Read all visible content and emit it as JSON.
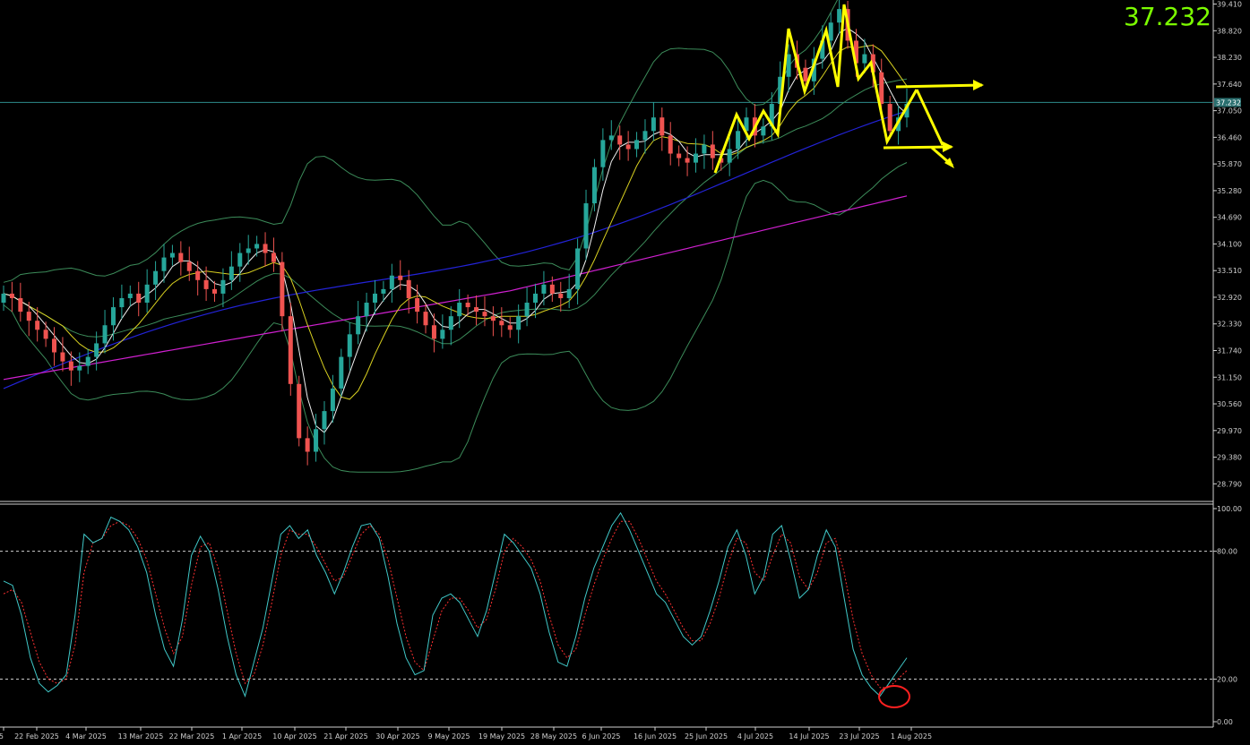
{
  "current_price": "37.232",
  "chart_data": [
    {
      "type": "candlestick",
      "title": "",
      "xlabel": "",
      "ylabel": "",
      "ylim": [
        28.4,
        39.5
      ],
      "yticks": [
        "39.410",
        "38.820",
        "38.230",
        "37.640",
        "37.050",
        "36.460",
        "35.870",
        "35.280",
        "34.690",
        "34.100",
        "33.510",
        "32.920",
        "32.330",
        "31.740",
        "31.150",
        "30.560",
        "29.970",
        "29.380",
        "28.790"
      ],
      "xticks": [
        "25",
        "22 Feb 2025",
        "4 Mar 2025",
        "13 Mar 2025",
        "22 Mar 2025",
        "1 Apr 2025",
        "10 Apr 2025",
        "21 Apr 2025",
        "30 Apr 2025",
        "9 May 2025",
        "19 May 2025",
        "28 May 2025",
        "6 Jun 2025",
        "16 Jun 2025",
        "25 Jun 2025",
        "4 Jul 2025",
        "14 Jul 2025",
        "23 Jul 2025",
        "1 Aug 2025"
      ],
      "close_series": [
        33.0,
        32.9,
        32.6,
        32.4,
        32.2,
        32.0,
        31.7,
        31.5,
        31.3,
        31.4,
        31.6,
        31.9,
        32.3,
        32.7,
        32.9,
        33.0,
        32.8,
        33.2,
        33.5,
        33.8,
        33.9,
        33.7,
        33.5,
        33.3,
        33.1,
        33.0,
        33.3,
        33.6,
        33.9,
        34.0,
        34.1,
        33.9,
        33.7,
        32.5,
        31.0,
        29.8,
        29.5,
        30.0,
        30.4,
        30.9,
        31.6,
        32.1,
        32.5,
        32.8,
        33.0,
        33.1,
        33.4,
        33.3,
        32.9,
        32.6,
        32.3,
        32.0,
        32.2,
        32.5,
        32.8,
        32.7,
        32.6,
        32.5,
        32.4,
        32.3,
        32.2,
        32.5,
        32.8,
        33.0,
        33.2,
        33.0,
        32.9,
        33.1,
        34.0,
        35.0,
        35.8,
        36.4,
        36.5,
        36.3,
        36.2,
        36.4,
        36.6,
        36.9,
        36.5,
        36.1,
        36.0,
        35.9,
        36.1,
        36.3,
        36.0,
        35.9,
        36.2,
        36.6,
        36.9,
        36.5,
        36.7,
        37.2,
        37.8,
        38.3,
        38.0,
        37.7,
        38.2,
        38.6,
        39.0,
        39.3,
        38.6,
        38.1,
        38.3,
        37.9,
        37.2,
        36.6,
        36.9,
        37.2
      ],
      "stochastic": {
        "ylim": [
          0,
          100
        ],
        "levels": [
          80,
          20
        ],
        "yticks": [
          "100.00",
          "80.00",
          "20.00",
          "0.00"
        ],
        "k": [
          66,
          64,
          50,
          30,
          18,
          14,
          17,
          22,
          50,
          88,
          84,
          86,
          96,
          94,
          90,
          82,
          70,
          50,
          34,
          26,
          48,
          78,
          87,
          80,
          62,
          40,
          22,
          12,
          28,
          44,
          66,
          88,
          92,
          86,
          90,
          78,
          70,
          60,
          70,
          82,
          92,
          93,
          86,
          68,
          46,
          30,
          22,
          24,
          50,
          58,
          60,
          56,
          48,
          40,
          52,
          70,
          88,
          84,
          78,
          72,
          60,
          42,
          28,
          26,
          40,
          58,
          72,
          82,
          92,
          98,
          90,
          80,
          70,
          60,
          56,
          48,
          40,
          36,
          40,
          52,
          66,
          82,
          90,
          78,
          60,
          68,
          88,
          92,
          76,
          58,
          62,
          78,
          90,
          82,
          58,
          34,
          22,
          16,
          12,
          18,
          24,
          30
        ],
        "d": [
          60,
          62,
          56,
          42,
          28,
          20,
          18,
          20,
          36,
          70,
          84,
          86,
          92,
          94,
          92,
          86,
          76,
          60,
          44,
          32,
          40,
          64,
          82,
          84,
          72,
          52,
          32,
          18,
          22,
          36,
          56,
          78,
          90,
          88,
          88,
          82,
          74,
          66,
          68,
          78,
          88,
          92,
          88,
          76,
          58,
          40,
          28,
          24,
          38,
          52,
          58,
          58,
          52,
          44,
          48,
          62,
          80,
          86,
          82,
          76,
          66,
          50,
          36,
          30,
          34,
          50,
          64,
          76,
          86,
          94,
          94,
          86,
          76,
          66,
          60,
          52,
          44,
          38,
          38,
          46,
          58,
          74,
          86,
          84,
          70,
          66,
          78,
          88,
          84,
          68,
          62,
          70,
          84,
          86,
          70,
          48,
          32,
          22,
          16,
          16,
          20,
          24
        ]
      }
    }
  ]
}
